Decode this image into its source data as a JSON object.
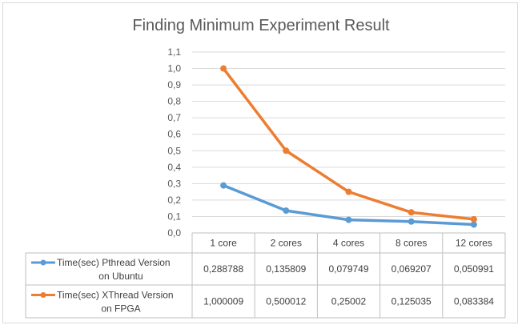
{
  "chart_data": {
    "type": "line",
    "title": "Finding Minimum Experiment Result",
    "categories": [
      "1 core",
      "2 cores",
      "4 cores",
      "8 cores",
      "12 cores"
    ],
    "ylim": [
      0.0,
      1.1
    ],
    "yticks": [
      "0,0",
      "0,1",
      "0,2",
      "0,3",
      "0,4",
      "0,5",
      "0,6",
      "0,7",
      "0,8",
      "0,9",
      "1,0",
      "1,1"
    ],
    "grid": true,
    "legend": "data-table",
    "series": [
      {
        "name_lines": [
          "Time(sec) Pthread Version",
          "on Ubuntu"
        ],
        "color": "#5b9bd5",
        "values": [
          0.288788,
          0.135809,
          0.079749,
          0.069207,
          0.050991
        ],
        "labels": [
          "0,288788",
          "0,135809",
          "0,079749",
          "0,069207",
          "0,050991"
        ]
      },
      {
        "name_lines": [
          "Time(sec) XThread Version",
          "on FPGA"
        ],
        "color": "#ed7d31",
        "values": [
          1.000009,
          0.500012,
          0.25002,
          0.125035,
          0.083384
        ],
        "labels": [
          "1,000009",
          "0,500012",
          "0,25002",
          "0,125035",
          "0,083384"
        ]
      }
    ]
  }
}
